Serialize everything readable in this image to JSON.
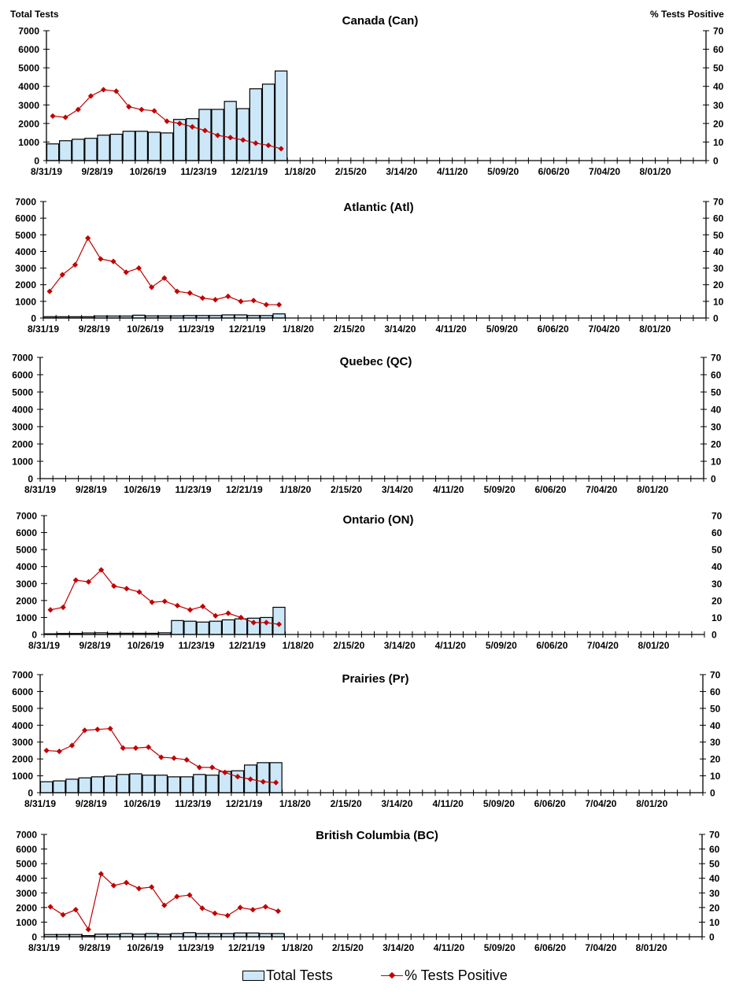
{
  "axis_titles": {
    "left": "Total Tests",
    "right": "% Tests Positive"
  },
  "legend": {
    "bars": "Total Tests",
    "line": "% Tests Positive"
  },
  "colors": {
    "bar_fill": "#cce8f8",
    "bar_stroke": "#000000",
    "line": "#c00000"
  },
  "chart_data": [
    {
      "type": "bar",
      "title": "Canada (Can)",
      "combo": "bar+line (dual axis)",
      "x_tick_labels": [
        "8/31/19",
        "9/28/19",
        "10/26/19",
        "11/23/19",
        "12/21/19",
        "1/18/20",
        "2/15/20",
        "3/14/20",
        "4/11/20",
        "5/09/20",
        "6/06/20",
        "7/04/20",
        "8/01/20"
      ],
      "weeks_total": 52,
      "ylabel_left": "Total Tests",
      "ylim_left": [
        0,
        7000
      ],
      "yticks_left": [
        0,
        1000,
        2000,
        3000,
        4000,
        5000,
        6000,
        7000
      ],
      "ylabel_right": "% Tests Positive",
      "ylim_right": [
        0,
        70
      ],
      "yticks_right": [
        0,
        10,
        20,
        30,
        40,
        50,
        60,
        70
      ],
      "series": [
        {
          "name": "Total Tests",
          "kind": "bar",
          "values": [
            900,
            1070,
            1150,
            1200,
            1370,
            1420,
            1580,
            1580,
            1530,
            1490,
            2220,
            2260,
            2760,
            2760,
            3190,
            2800,
            3870,
            4120,
            4830
          ]
        },
        {
          "name": "% Tests Positive",
          "kind": "line",
          "values": [
            24,
            23.3,
            27.5,
            34.8,
            38.2,
            37.4,
            29,
            27.5,
            26.8,
            21.2,
            20,
            18.2,
            16.2,
            13.6,
            12.4,
            11.1,
            9.4,
            8.2,
            6.4
          ]
        }
      ]
    },
    {
      "type": "bar",
      "title": "Atlantic (Atl)",
      "combo": "bar+line (dual axis)",
      "x_tick_labels": [
        "8/31/19",
        "9/28/19",
        "10/26/19",
        "11/23/19",
        "12/21/19",
        "1/18/20",
        "2/15/20",
        "3/14/20",
        "4/11/20",
        "5/09/20",
        "6/06/20",
        "7/04/20",
        "8/01/20"
      ],
      "weeks_total": 52,
      "ylim_left": [
        0,
        7000
      ],
      "yticks_left": [
        0,
        1000,
        2000,
        3000,
        4000,
        5000,
        6000,
        7000
      ],
      "ylim_right": [
        0,
        70
      ],
      "yticks_right": [
        0,
        10,
        20,
        30,
        40,
        50,
        60,
        70
      ],
      "series": [
        {
          "name": "Total Tests",
          "kind": "bar",
          "values": [
            80,
            80,
            80,
            80,
            120,
            120,
            120,
            170,
            130,
            130,
            130,
            150,
            150,
            150,
            190,
            190,
            150,
            150,
            250
          ]
        },
        {
          "name": "% Tests Positive",
          "kind": "line",
          "values": [
            16,
            26,
            32,
            48,
            35.5,
            34,
            27.5,
            30,
            18.5,
            24,
            16,
            15,
            12,
            11,
            13,
            10,
            10.5,
            8,
            8
          ]
        }
      ]
    },
    {
      "type": "bar",
      "title": "Quebec (QC)",
      "combo": "bar+line (dual axis)",
      "x_tick_labels": [
        "8/31/19",
        "9/28/19",
        "10/26/19",
        "11/23/19",
        "12/21/19",
        "1/18/20",
        "2/15/20",
        "3/14/20",
        "4/11/20",
        "5/09/20",
        "6/06/20",
        "7/04/20",
        "8/01/20"
      ],
      "weeks_total": 52,
      "ylim_left": [
        0,
        7000
      ],
      "yticks_left": [
        0,
        1000,
        2000,
        3000,
        4000,
        5000,
        6000,
        7000
      ],
      "ylim_right": [
        0,
        70
      ],
      "yticks_right": [
        0,
        10,
        20,
        30,
        40,
        50,
        60,
        70
      ],
      "series": [
        {
          "name": "Total Tests",
          "kind": "bar",
          "values": []
        },
        {
          "name": "% Tests Positive",
          "kind": "line",
          "values": []
        }
      ]
    },
    {
      "type": "bar",
      "title": "Ontario (ON)",
      "combo": "bar+line (dual axis)",
      "x_tick_labels": [
        "8/31/19",
        "9/28/19",
        "10/26/19",
        "11/23/19",
        "12/21/19",
        "1/18/20",
        "2/15/20",
        "3/14/20",
        "4/11/20",
        "5/09/20",
        "6/06/20",
        "7/04/20",
        "8/01/20"
      ],
      "weeks_total": 52,
      "ylim_left": [
        0,
        7000
      ],
      "yticks_left": [
        0,
        1000,
        2000,
        3000,
        4000,
        5000,
        6000,
        7000
      ],
      "ylim_right": [
        0,
        70
      ],
      "yticks_right": [
        0,
        10,
        20,
        30,
        40,
        50,
        60,
        70
      ],
      "series": [
        {
          "name": "Total Tests",
          "kind": "bar",
          "values": [
            40,
            60,
            60,
            90,
            100,
            70,
            70,
            70,
            70,
            100,
            820,
            780,
            730,
            780,
            860,
            920,
            960,
            1000,
            1600
          ]
        },
        {
          "name": "% Tests Positive",
          "kind": "line",
          "values": [
            14.5,
            16,
            32,
            31,
            38,
            28.5,
            27,
            25,
            19,
            19.5,
            17,
            14.5,
            16.5,
            11,
            12.5,
            10,
            7,
            7,
            6
          ]
        }
      ]
    },
    {
      "type": "bar",
      "title": "Prairies (Pr)",
      "combo": "bar+line (dual axis)",
      "x_tick_labels": [
        "8/31/19",
        "9/28/19",
        "10/26/19",
        "11/23/19",
        "12/21/19",
        "1/18/20",
        "2/15/20",
        "3/14/20",
        "4/11/20",
        "5/09/20",
        "6/06/20",
        "7/04/20",
        "8/01/20"
      ],
      "weeks_total": 52,
      "ylim_left": [
        0,
        7000
      ],
      "yticks_left": [
        0,
        1000,
        2000,
        3000,
        4000,
        5000,
        6000,
        7000
      ],
      "ylim_right": [
        0,
        70
      ],
      "yticks_right": [
        0,
        10,
        20,
        30,
        40,
        50,
        60,
        70
      ],
      "series": [
        {
          "name": "Total Tests",
          "kind": "bar",
          "values": [
            650,
            700,
            800,
            880,
            940,
            980,
            1080,
            1120,
            1040,
            1040,
            940,
            940,
            1080,
            1040,
            1260,
            1300,
            1640,
            1780,
            1780
          ]
        },
        {
          "name": "% Tests Positive",
          "kind": "line",
          "values": [
            25,
            24.5,
            28,
            37,
            37.5,
            38,
            26.5,
            26.5,
            27,
            21,
            20.5,
            19.5,
            15,
            15,
            12,
            9.5,
            8,
            6.5,
            6
          ]
        }
      ]
    },
    {
      "type": "bar",
      "title": "British Columbia (BC)",
      "combo": "bar+line (dual axis)",
      "x_tick_labels": [
        "8/31/19",
        "9/28/19",
        "10/26/19",
        "11/23/19",
        "12/21/19",
        "1/18/20",
        "2/15/20",
        "3/14/20",
        "4/11/20",
        "5/09/20",
        "6/06/20",
        "7/04/20",
        "8/01/20"
      ],
      "weeks_total": 52,
      "ylim_left": [
        0,
        7000
      ],
      "yticks_left": [
        0,
        1000,
        2000,
        3000,
        4000,
        5000,
        6000,
        7000
      ],
      "ylim_right": [
        0,
        70
      ],
      "yticks_right": [
        0,
        10,
        20,
        30,
        40,
        50,
        60,
        70
      ],
      "series": [
        {
          "name": "Total Tests",
          "kind": "bar",
          "values": [
            150,
            150,
            150,
            80,
            180,
            180,
            220,
            180,
            220,
            180,
            220,
            280,
            220,
            220,
            220,
            260,
            260,
            220,
            220
          ]
        },
        {
          "name": "% Tests Positive",
          "kind": "line",
          "values": [
            20.5,
            15,
            18.5,
            5,
            43,
            35,
            37,
            33,
            34,
            21.5,
            27.5,
            28.5,
            19.5,
            16,
            14.5,
            20,
            18.5,
            20.5,
            17.5
          ]
        }
      ]
    }
  ]
}
